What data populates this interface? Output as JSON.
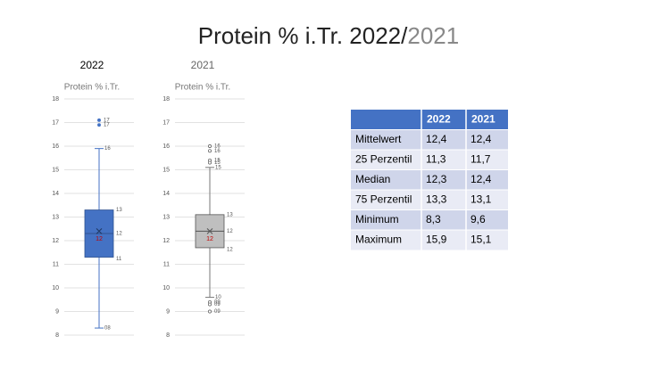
{
  "title": [
    "Protein % i.Tr.  2022/",
    "2021"
  ],
  "chart_data": [
    {
      "type": "box",
      "header": "2022",
      "title": "Protein % i.Tr.",
      "color": "#4472c4",
      "grid": true,
      "ylim": [
        8,
        18
      ],
      "yticks": [
        8,
        9,
        10,
        11,
        12,
        13,
        14,
        15,
        16,
        17,
        18
      ],
      "whisker_low": 8.3,
      "q1": 11.3,
      "median": 12.3,
      "q3": 13.3,
      "whisker_high": 15.9,
      "mean": 12.4,
      "outliers": [
        17.1,
        16.9
      ],
      "value_labels": {
        "whisker_low": "08",
        "q1": "11",
        "median": "12",
        "q3": "13",
        "whisker_high": "16",
        "mean": "12"
      },
      "outlier_labels": [
        "17",
        "17"
      ]
    },
    {
      "type": "box",
      "header": "2021",
      "title": "Protein % i.Tr.",
      "color": "#bfbfbf",
      "grid": true,
      "ylim": [
        8,
        18
      ],
      "yticks": [
        8,
        9,
        10,
        11,
        12,
        13,
        14,
        15,
        16,
        17,
        18
      ],
      "whisker_low": 9.6,
      "q1": 11.7,
      "median": 12.4,
      "q3": 13.1,
      "whisker_high": 15.1,
      "mean": 12.4,
      "outliers": [
        16.0,
        15.8,
        15.4,
        15.3,
        9.4,
        9.3,
        9.0
      ],
      "value_labels": {
        "whisker_low": "10",
        "q1": "12",
        "median": "12",
        "q3": "13",
        "whisker_high": "15",
        "mean": "12"
      },
      "outlier_labels": [
        "16",
        "16",
        "15",
        "15",
        "09",
        "09",
        "09"
      ]
    }
  ],
  "table": {
    "columns": [
      "2022",
      "2021"
    ],
    "rows": [
      [
        "Mittelwert",
        "12,4",
        "12,4"
      ],
      [
        "25 Perzentil",
        "11,3",
        "11,7"
      ],
      [
        "Median",
        "12,3",
        "12,4"
      ],
      [
        "75 Perzentil",
        "13,3",
        "13,1"
      ],
      [
        "Minimum",
        "8,3",
        "9,6"
      ],
      [
        "Maximum",
        "15,9",
        "15,1"
      ]
    ]
  }
}
